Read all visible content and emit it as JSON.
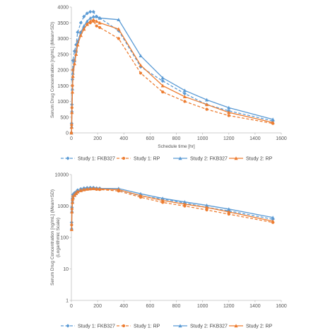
{
  "chart_data": [
    {
      "type": "line",
      "yscale": "linear",
      "xlabel": "Schedule time [hr]",
      "ylabel": "Serum Drug Concentration [ng/mL] (Mean+SD)",
      "ylabel_2": "",
      "xlim": [
        0,
        1600
      ],
      "ylim": [
        0,
        4000
      ],
      "xticks": [
        0,
        200,
        400,
        600,
        800,
        1000,
        1200,
        1400,
        1600
      ],
      "yticks": [
        0,
        500,
        1000,
        1500,
        2000,
        2500,
        3000,
        3500,
        4000
      ],
      "ytick_labels": [
        "0",
        "500",
        "1000",
        "1500",
        "2000",
        "2500",
        "3000",
        "3500",
        "4000"
      ],
      "grid": false,
      "legend_position": "bottom",
      "series": [
        {
          "name": "Study 1: FKB327",
          "color": "#5b9bd5",
          "dash": true,
          "marker": "diamond",
          "x": [
            0,
            2,
            4,
            8,
            12,
            24,
            36,
            48,
            72,
            96,
            120,
            144,
            168,
            192,
            216,
            360,
            528,
            696,
            864,
            1032,
            1200,
            1536
          ],
          "y": [
            0,
            300,
            900,
            1700,
            2300,
            2600,
            2800,
            3200,
            3500,
            3700,
            3800,
            3850,
            3850,
            3700,
            3650,
            3250,
            2100,
            1650,
            1250,
            900,
            700,
            380
          ]
        },
        {
          "name": "Study 1: RP",
          "color": "#ed7d31",
          "dash": true,
          "marker": "circle",
          "x": [
            0,
            2,
            4,
            8,
            12,
            24,
            36,
            48,
            72,
            96,
            120,
            144,
            168,
            192,
            216,
            360,
            528,
            696,
            864,
            1032,
            1200,
            1536
          ],
          "y": [
            0,
            250,
            800,
            1500,
            2000,
            2300,
            2600,
            2900,
            3200,
            3350,
            3450,
            3500,
            3550,
            3400,
            3350,
            3000,
            1900,
            1300,
            1000,
            750,
            550,
            300
          ]
        },
        {
          "name": "Study 2: FKB327",
          "color": "#5b9bd5",
          "dash": false,
          "marker": "triangle",
          "x": [
            0,
            2,
            4,
            8,
            12,
            24,
            36,
            48,
            72,
            96,
            120,
            144,
            168,
            192,
            216,
            360,
            528,
            696,
            864,
            1032,
            1200,
            1536
          ],
          "y": [
            0,
            200,
            700,
            1400,
            1900,
            2300,
            2600,
            2900,
            3200,
            3400,
            3550,
            3650,
            3700,
            3700,
            3650,
            3600,
            2450,
            1750,
            1350,
            1050,
            800,
            430
          ]
        },
        {
          "name": "Study 2: RP",
          "color": "#ed7d31",
          "dash": false,
          "marker": "triangle",
          "x": [
            0,
            2,
            4,
            8,
            12,
            24,
            36,
            48,
            72,
            96,
            120,
            144,
            168,
            192,
            216,
            360,
            528,
            696,
            864,
            1032,
            1200,
            1536
          ],
          "y": [
            0,
            180,
            650,
            1300,
            1800,
            2200,
            2500,
            2800,
            3100,
            3300,
            3450,
            3550,
            3600,
            3550,
            3500,
            3300,
            2150,
            1500,
            1150,
            900,
            650,
            330
          ]
        }
      ]
    },
    {
      "type": "line",
      "yscale": "log",
      "xlabel": "",
      "ylabel": "Serum Drug Concentration [ng/mL] (Mean+SD)",
      "ylabel_2": "(Logarithmic Scale)",
      "xlim": [
        0,
        1600
      ],
      "ylim": [
        1,
        10000
      ],
      "xticks": [
        0,
        200,
        400,
        600,
        800,
        1000,
        1200,
        1400,
        1600
      ],
      "yticks": [
        1,
        10,
        100,
        1000,
        10000
      ],
      "ytick_labels": [
        "1",
        "10",
        "100",
        "1000",
        "10000"
      ],
      "grid": false,
      "legend_position": "bottom",
      "series": [
        {
          "name": "Study 1: FKB327",
          "color": "#5b9bd5",
          "dash": true,
          "marker": "diamond",
          "x": [
            2,
            4,
            8,
            12,
            24,
            36,
            48,
            72,
            96,
            120,
            144,
            168,
            192,
            216,
            360,
            528,
            696,
            864,
            1032,
            1200,
            1536
          ],
          "y": [
            300,
            900,
            1700,
            2300,
            2600,
            2800,
            3200,
            3500,
            3700,
            3800,
            3850,
            3850,
            3700,
            3650,
            3250,
            2100,
            1650,
            1250,
            900,
            700,
            380
          ]
        },
        {
          "name": "Study 1: RP",
          "color": "#ed7d31",
          "dash": true,
          "marker": "circle",
          "x": [
            2,
            4,
            8,
            12,
            24,
            36,
            48,
            72,
            96,
            120,
            144,
            168,
            192,
            216,
            360,
            528,
            696,
            864,
            1032,
            1200,
            1536
          ],
          "y": [
            250,
            800,
            1500,
            2000,
            2300,
            2600,
            2900,
            3200,
            3350,
            3450,
            3500,
            3550,
            3400,
            3350,
            3000,
            1900,
            1300,
            1000,
            750,
            550,
            300
          ]
        },
        {
          "name": "Study 2: FKB327",
          "color": "#5b9bd5",
          "dash": false,
          "marker": "triangle",
          "x": [
            2,
            4,
            8,
            12,
            24,
            36,
            48,
            72,
            96,
            120,
            144,
            168,
            192,
            216,
            360,
            528,
            696,
            864,
            1032,
            1200,
            1536
          ],
          "y": [
            200,
            700,
            1400,
            1900,
            2300,
            2600,
            2900,
            3200,
            3400,
            3550,
            3650,
            3700,
            3700,
            3650,
            3600,
            2450,
            1750,
            1350,
            1050,
            800,
            430
          ]
        },
        {
          "name": "Study 2: RP",
          "color": "#ed7d31",
          "dash": false,
          "marker": "triangle",
          "x": [
            2,
            4,
            8,
            12,
            24,
            36,
            48,
            72,
            96,
            120,
            144,
            168,
            192,
            216,
            360,
            528,
            696,
            864,
            1032,
            1200,
            1536
          ],
          "y": [
            180,
            650,
            1300,
            1800,
            2200,
            2500,
            2800,
            3100,
            3300,
            3450,
            3550,
            3600,
            3550,
            3500,
            3300,
            2150,
            1500,
            1150,
            900,
            650,
            330
          ]
        }
      ]
    }
  ]
}
